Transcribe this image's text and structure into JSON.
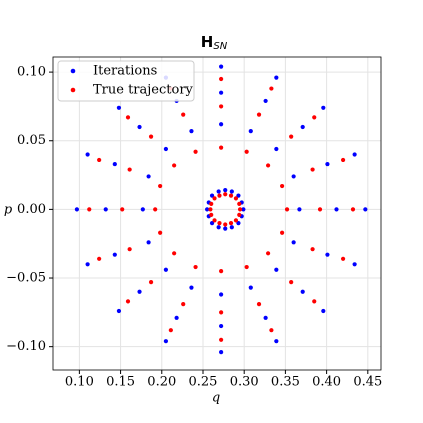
{
  "chart_data": {
    "type": "scatter",
    "title": "H",
    "title_sub": "SN",
    "xlabel": "q",
    "ylabel": "p",
    "xlim": [
      0.068,
      0.466
    ],
    "ylim": [
      -0.117,
      0.111
    ],
    "xticks": [
      {
        "value": 0.1,
        "label": "0.10"
      },
      {
        "value": 0.15,
        "label": "0.15"
      },
      {
        "value": 0.2,
        "label": "0.20"
      },
      {
        "value": 0.25,
        "label": "0.25"
      },
      {
        "value": 0.3,
        "label": "0.30"
      },
      {
        "value": 0.35,
        "label": "0.35"
      },
      {
        "value": 0.4,
        "label": "0.40"
      },
      {
        "value": 0.45,
        "label": "0.45"
      }
    ],
    "yticks": [
      {
        "value": -0.1,
        "label": "−0.10"
      },
      {
        "value": -0.05,
        "label": "−0.05"
      },
      {
        "value": 0,
        "label": "0.00"
      },
      {
        "value": 0.05,
        "label": "0.05"
      },
      {
        "value": 0.1,
        "label": "0.10"
      }
    ],
    "grid": true,
    "legend": "upper left",
    "series": [
      {
        "name": "Iterations",
        "color": "#0000ff",
        "x": [
          0.299,
          0.297,
          0.293,
          0.285,
          0.277,
          0.269,
          0.261,
          0.257,
          0.255,
          0.257,
          0.261,
          0.269,
          0.277,
          0.285,
          0.293,
          0.297,
          0.367,
          0.36,
          0.339,
          0.308,
          0.272,
          0.236,
          0.205,
          0.184,
          0.177,
          0.184,
          0.205,
          0.236,
          0.272,
          0.308,
          0.339,
          0.36,
          0.412,
          0.401,
          0.371,
          0.326,
          0.272,
          0.218,
          0.173,
          0.143,
          0.132,
          0.143,
          0.173,
          0.218,
          0.272,
          0.326,
          0.371,
          0.401,
          0.447,
          0.434,
          0.396,
          0.339,
          0.272,
          0.205,
          0.148,
          0.11,
          0.097,
          0.11,
          0.148,
          0.205,
          0.272,
          0.339,
          0.396,
          0.434
        ],
        "values": [
          0,
          0.005,
          0.01,
          0.013,
          0.014,
          0.013,
          0.01,
          0.005,
          0,
          -0.005,
          -0.01,
          -0.013,
          -0.014,
          -0.013,
          -0.01,
          -0.005,
          0,
          0.024,
          0.044,
          0.057,
          0.062,
          0.057,
          0.044,
          0.024,
          0,
          -0.024,
          -0.044,
          -0.057,
          -0.062,
          -0.057,
          -0.044,
          -0.024,
          0,
          0.033,
          0.06,
          0.079,
          0.085,
          0.079,
          0.06,
          0.033,
          0,
          -0.033,
          -0.06,
          -0.079,
          -0.085,
          -0.079,
          -0.06,
          -0.033,
          0,
          0.04,
          0.074,
          0.096,
          0.104,
          0.096,
          0.074,
          0.04,
          0,
          -0.04,
          -0.074,
          -0.096,
          -0.104,
          -0.096,
          -0.074,
          -0.04
        ]
      },
      {
        "name": "True trajectory",
        "color": "#ff0000",
        "x": [
          0.295,
          0.294,
          0.29,
          0.284,
          0.277,
          0.27,
          0.264,
          0.26,
          0.259,
          0.26,
          0.264,
          0.27,
          0.277,
          0.284,
          0.29,
          0.294,
          0.352,
          0.346,
          0.329,
          0.303,
          0.272,
          0.241,
          0.215,
          0.198,
          0.192,
          0.198,
          0.215,
          0.241,
          0.272,
          0.303,
          0.329,
          0.346,
          0.392,
          0.383,
          0.357,
          0.318,
          0.272,
          0.226,
          0.187,
          0.161,
          0.152,
          0.161,
          0.187,
          0.226,
          0.272,
          0.318,
          0.357,
          0.383,
          0.432,
          0.42,
          0.385,
          0.333,
          0.272,
          0.211,
          0.159,
          0.124,
          0.112,
          0.124,
          0.159,
          0.211,
          0.272,
          0.333,
          0.385,
          0.42
        ],
        "values": [
          0,
          0.004,
          0.008,
          0.01,
          0.011,
          0.01,
          0.008,
          0.004,
          0,
          -0.004,
          -0.008,
          -0.01,
          -0.011,
          -0.01,
          -0.008,
          -0.004,
          0,
          0.017,
          0.032,
          0.042,
          0.045,
          0.042,
          0.032,
          0.017,
          0,
          -0.017,
          -0.032,
          -0.042,
          -0.045,
          -0.042,
          -0.032,
          -0.017,
          0,
          0.029,
          0.053,
          0.069,
          0.075,
          0.069,
          0.053,
          0.029,
          0,
          -0.029,
          -0.053,
          -0.069,
          -0.075,
          -0.069,
          -0.053,
          -0.029,
          0,
          0.036,
          0.067,
          0.088,
          0.095,
          0.088,
          0.067,
          0.036,
          0,
          -0.036,
          -0.067,
          -0.088,
          -0.095,
          -0.088,
          -0.067,
          -0.036
        ]
      }
    ]
  }
}
